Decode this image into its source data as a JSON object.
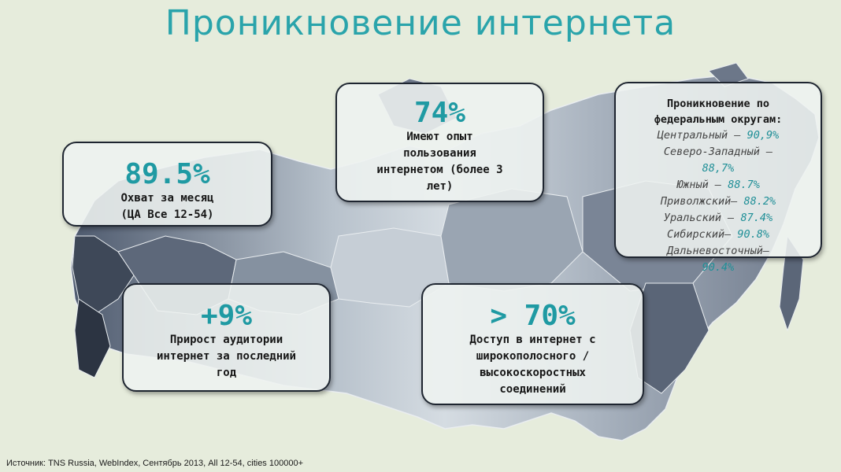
{
  "title": "Проникновение интернета",
  "source": "Источник: TNS Russia,  WebIndex, Сентябрь 2013, All 12-54, cities 100000+",
  "colors": {
    "accent": "#1f9aa3",
    "title": "#2aa4ab",
    "background": "#e6ecdc"
  },
  "stats": {
    "monthly_reach": {
      "value": "89.5%",
      "line1": "Охват за месяц",
      "line2": "(ЦА Все 12-54)"
    },
    "experience": {
      "value": "74%",
      "line1": "Имеют опыт",
      "line2": "пользования",
      "line3": "интернетом (более 3",
      "line4": "лет)"
    },
    "growth": {
      "value": "+9%",
      "line1": "Прирост аудитории",
      "line2": "интернет за последний",
      "line3": "год"
    },
    "broadband": {
      "value": "> 70%",
      "line1": "Доступ в интернет с",
      "line2": "широкополосного /",
      "line3": "высокоскоростных",
      "line4": "соединений"
    }
  },
  "regions": {
    "title_line1": "Проникновение по",
    "title_line2": "федеральным округам:",
    "items": [
      {
        "name": "Центральный – ",
        "value": "90,9%"
      },
      {
        "name": "Северо-Западный –",
        "value": "88,7%"
      },
      {
        "name": "Южный – ",
        "value": "88.7%"
      },
      {
        "name": "Приволжский– ",
        "value": "88.2%"
      },
      {
        "name": "Уральский – ",
        "value": "87.4%"
      },
      {
        "name": "Сибирский– ",
        "value": "90.8%"
      },
      {
        "name": "Дальневосточный–",
        "value": "90.4%"
      }
    ]
  }
}
